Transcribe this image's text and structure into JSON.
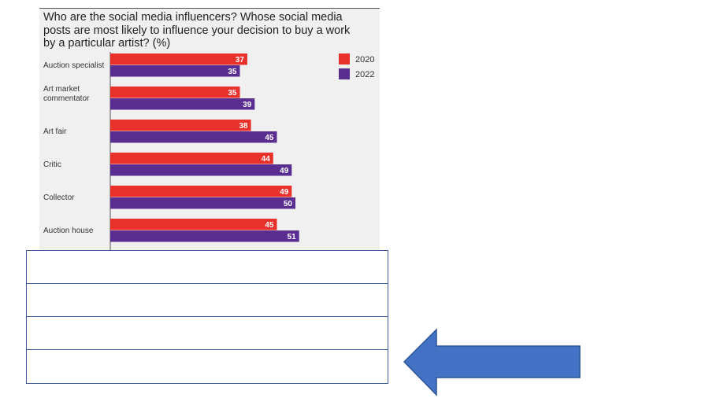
{
  "chart_data": {
    "type": "bar",
    "orientation": "horizontal",
    "title": "Who are the social media influencers? Whose social media posts are most likely to influence your decision to buy a work by a particular artist? (%)",
    "categories": [
      "Auction specialist",
      "Art market commentator",
      "Art fair",
      "Critic",
      "Collector",
      "Auction house"
    ],
    "category_lines": [
      [
        "Auction specialist"
      ],
      [
        "Art market",
        "commentator"
      ],
      [
        "Art fair"
      ],
      [
        "Critic"
      ],
      [
        "Collector"
      ],
      [
        "Auction house"
      ]
    ],
    "series": [
      {
        "name": "2020",
        "color": "#e8312a",
        "values": [
          37,
          35,
          38,
          44,
          49,
          45
        ]
      },
      {
        "name": "2022",
        "color": "#5a2d91",
        "values": [
          35,
          39,
          45,
          49,
          50,
          51
        ]
      }
    ],
    "xlim": [
      0,
      100
    ],
    "legend_position": "top-right",
    "grid": false
  },
  "table": {
    "rows": [
      "",
      "",
      "",
      ""
    ]
  },
  "colors": {
    "panel_bg": "#f0f0f0",
    "table_border": "#3b5b9a",
    "arrow_fill": "#4472c4",
    "arrow_stroke": "#2f5597"
  },
  "arrow": {
    "icon": "arrow-left-icon"
  }
}
